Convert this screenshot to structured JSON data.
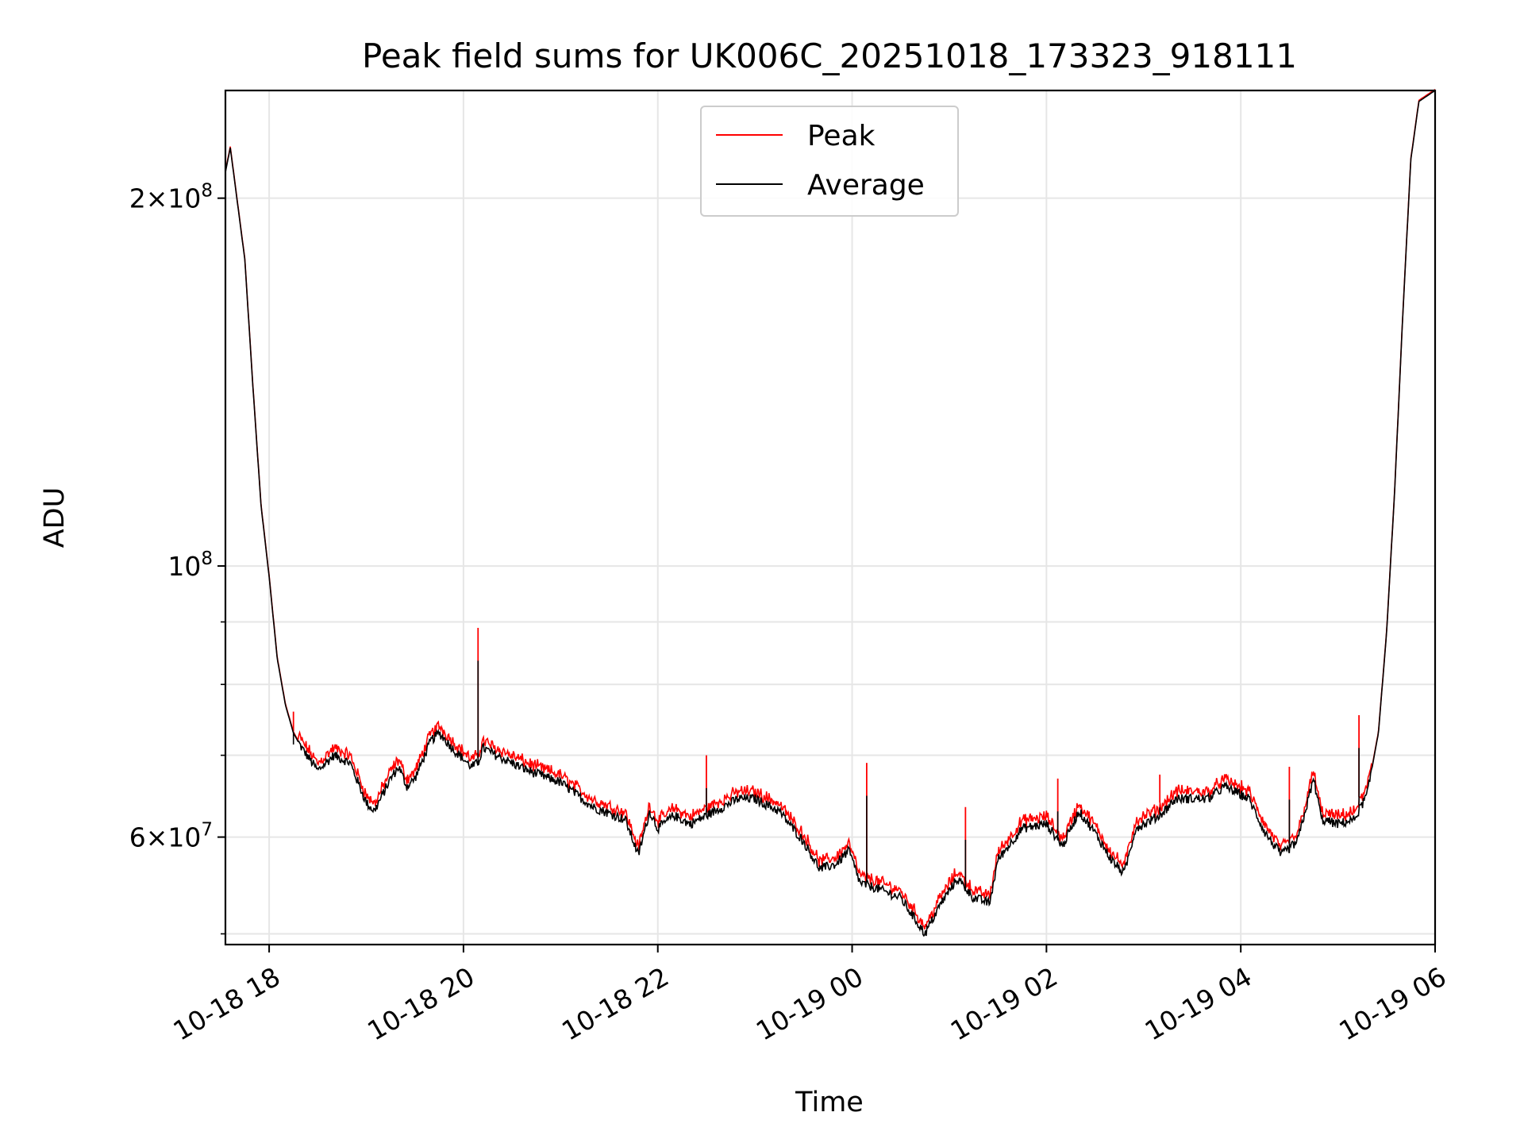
{
  "chart_data": {
    "type": "line",
    "title": "Peak field sums for UK006C_20251018_173323_918111",
    "xlabel": "Time",
    "ylabel": "ADU",
    "yscale": "log",
    "ylim": [
      49000000,
      245000000
    ],
    "xlim": [
      "10-18 17:33",
      "10-19 06:00"
    ],
    "x_ticks": [
      "10-18 18",
      "10-18 20",
      "10-18 22",
      "10-19 00",
      "10-19 02",
      "10-19 04",
      "10-19 06"
    ],
    "y_ticks": [
      {
        "value": 200000000,
        "mantissa": "2",
        "exp": "8"
      },
      {
        "value": 100000000,
        "mantissa": "",
        "exp": "8"
      },
      {
        "value": 60000000,
        "mantissa": "6",
        "exp": "7"
      }
    ],
    "grid": true,
    "legend_position": "upper center",
    "series": [
      {
        "name": "Peak",
        "color": "#ff0000"
      },
      {
        "name": "Average",
        "color": "#000000"
      }
    ],
    "average_points": [
      [
        "10-18 17:33",
        210000000
      ],
      [
        "10-18 17:36",
        220000000
      ],
      [
        "10-18 17:39",
        205000000
      ],
      [
        "10-18 17:45",
        178000000
      ],
      [
        "10-18 17:50",
        140000000
      ],
      [
        "10-18 17:55",
        112000000
      ],
      [
        "10-18 18:00",
        98000000
      ],
      [
        "10-18 18:05",
        84000000
      ],
      [
        "10-18 18:10",
        77000000
      ],
      [
        "10-18 18:15",
        73000000
      ],
      [
        "10-18 18:20",
        71000000
      ],
      [
        "10-18 18:30",
        68000000
      ],
      [
        "10-18 18:40",
        70000000
      ],
      [
        "10-18 18:50",
        69000000
      ],
      [
        "10-18 19:00",
        64000000
      ],
      [
        "10-18 19:05",
        63000000
      ],
      [
        "10-18 19:15",
        67000000
      ],
      [
        "10-18 19:20",
        68500000
      ],
      [
        "10-18 19:25",
        66000000
      ],
      [
        "10-18 19:30",
        67000000
      ],
      [
        "10-18 19:40",
        72000000
      ],
      [
        "10-18 19:45",
        73000000
      ],
      [
        "10-18 19:55",
        70500000
      ],
      [
        "10-18 20:05",
        68500000
      ],
      [
        "10-18 20:09",
        69000000
      ],
      [
        "10-18 20:12",
        71000000
      ],
      [
        "10-18 20:20",
        70000000
      ],
      [
        "10-18 20:40",
        68000000
      ],
      [
        "10-18 21:00",
        66500000
      ],
      [
        "10-18 21:20",
        63500000
      ],
      [
        "10-18 21:40",
        62000000
      ],
      [
        "10-18 21:48",
        58000000
      ],
      [
        "10-18 21:55",
        63000000
      ],
      [
        "10-18 22:00",
        61000000
      ],
      [
        "10-18 22:10",
        62500000
      ],
      [
        "10-18 22:20",
        61500000
      ],
      [
        "10-18 22:40",
        63500000
      ],
      [
        "10-18 22:50",
        64500000
      ],
      [
        "10-18 23:00",
        64500000
      ],
      [
        "10-18 23:15",
        63000000
      ],
      [
        "10-18 23:30",
        59500000
      ],
      [
        "10-18 23:40",
        56500000
      ],
      [
        "10-18 23:50",
        57000000
      ],
      [
        "10-18 23:58",
        58500000
      ],
      [
        "10-19 00:05",
        55000000
      ],
      [
        "10-19 00:15",
        54500000
      ],
      [
        "10-19 00:30",
        53500000
      ],
      [
        "10-19 00:45",
        50000000
      ],
      [
        "10-19 00:55",
        53000000
      ],
      [
        "10-19 01:05",
        55500000
      ],
      [
        "10-19 01:15",
        53500000
      ],
      [
        "10-19 01:25",
        53000000
      ],
      [
        "10-19 01:30",
        57500000
      ],
      [
        "10-19 01:45",
        61000000
      ],
      [
        "10-19 02:00",
        61500000
      ],
      [
        "10-19 02:10",
        59000000
      ],
      [
        "10-19 02:20",
        63000000
      ],
      [
        "10-19 02:30",
        60500000
      ],
      [
        "10-19 02:40",
        57500000
      ],
      [
        "10-19 02:48",
        56000000
      ],
      [
        "10-19 02:55",
        61000000
      ],
      [
        "10-19 03:10",
        62500000
      ],
      [
        "10-19 03:20",
        64500000
      ],
      [
        "10-19 03:40",
        64500000
      ],
      [
        "10-19 03:50",
        66000000
      ],
      [
        "10-19 04:05",
        64500000
      ],
      [
        "10-19 04:15",
        60500000
      ],
      [
        "10-19 04:25",
        58000000
      ],
      [
        "10-19 04:35",
        59500000
      ],
      [
        "10-19 04:45",
        67000000
      ],
      [
        "10-19 04:50",
        62000000
      ],
      [
        "10-19 05:00",
        61500000
      ],
      [
        "10-19 05:10",
        62000000
      ],
      [
        "10-19 05:18",
        65000000
      ],
      [
        "10-19 05:25",
        73000000
      ],
      [
        "10-19 05:30",
        88000000
      ],
      [
        "10-19 05:35",
        115000000
      ],
      [
        "10-19 05:40",
        160000000
      ],
      [
        "10-19 05:45",
        215000000
      ],
      [
        "10-19 05:50",
        240000000
      ],
      [
        "10-19 06:00",
        245000000
      ]
    ],
    "peak_spikes": [
      [
        "10-18 18:15",
        76000000
      ],
      [
        "10-18 20:09",
        89000000
      ],
      [
        "10-18 22:30",
        70000000
      ],
      [
        "10-19 00:09",
        69000000
      ],
      [
        "10-19 01:10",
        63500000
      ],
      [
        "10-19 02:07",
        67000000
      ],
      [
        "10-19 03:10",
        67500000
      ],
      [
        "10-19 04:30",
        68500000
      ],
      [
        "10-19 05:13",
        75500000
      ]
    ]
  }
}
